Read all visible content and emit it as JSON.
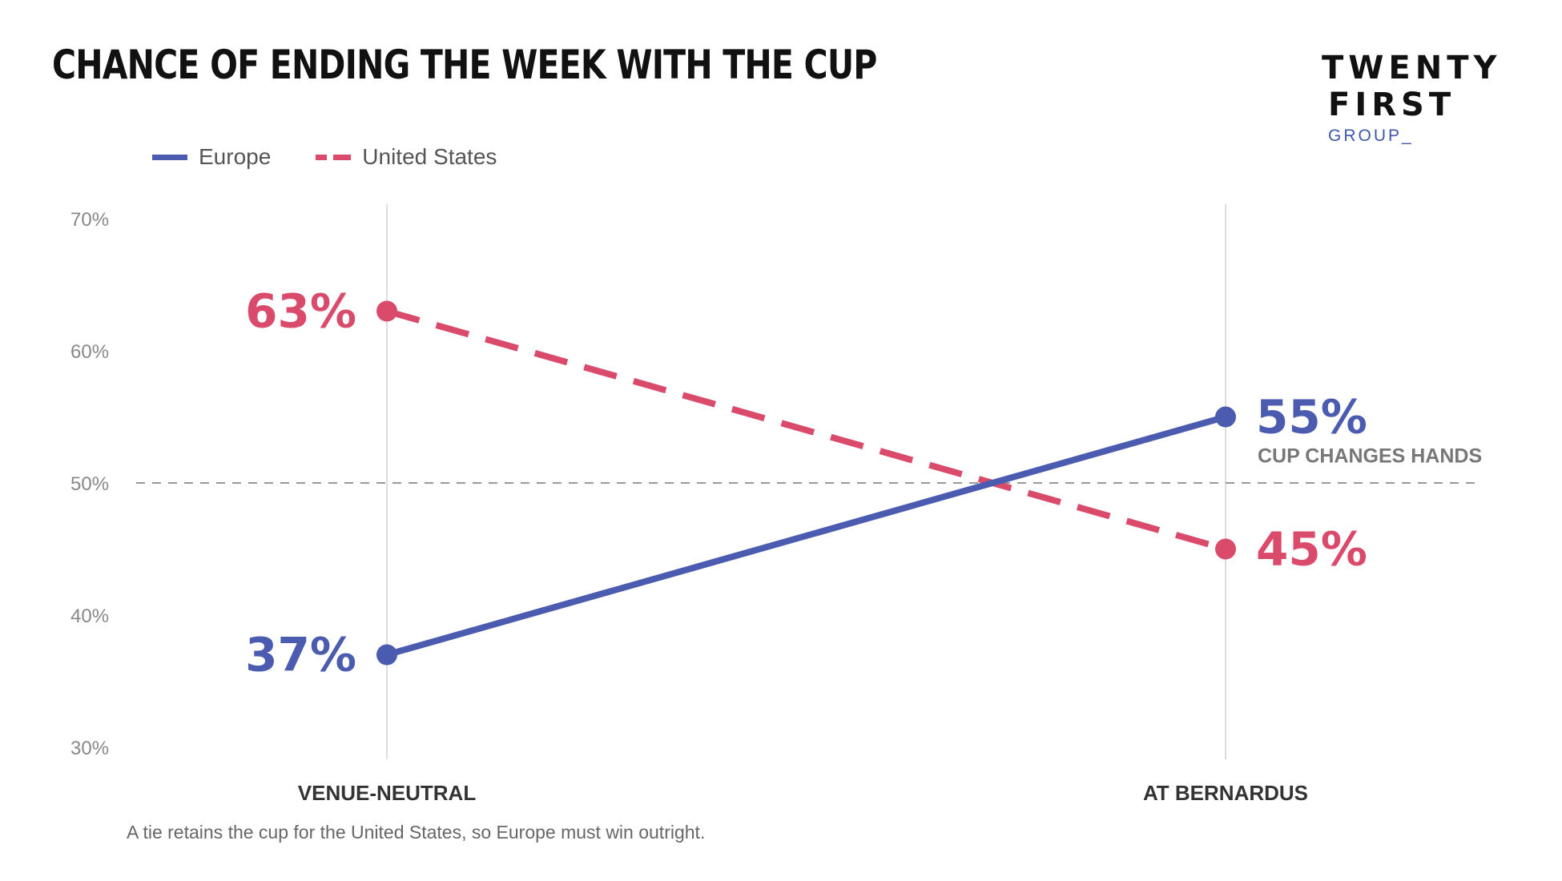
{
  "header": {
    "title": "CHANCE OF ENDING THE WEEK WITH THE CUP"
  },
  "logo": {
    "line1": "TWENTY",
    "line2": "FIRST",
    "line3": "GROUP_"
  },
  "footnote": "A tie retains the cup for the United States, so Europe must win outright.",
  "colors": {
    "europe": "#4A5BB0",
    "united_states": "#D94A6B",
    "title": "#111111",
    "brand_blue": "#3F57A8"
  },
  "chart_data": {
    "type": "line",
    "categories": [
      "VENUE-NEUTRAL",
      "AT BERNARDUS"
    ],
    "series": [
      {
        "name": "Europe",
        "values": [
          37,
          55
        ],
        "labels": [
          "37%",
          "55%"
        ],
        "color": "#4A5BB0",
        "style": "solid"
      },
      {
        "name": "United States",
        "values": [
          63,
          45
        ],
        "labels": [
          "63%",
          "45%"
        ],
        "color": "#D94A6B",
        "style": "dashed"
      }
    ],
    "ylim": [
      30,
      70
    ],
    "yticks": [
      70,
      60,
      50,
      40,
      30
    ],
    "ytick_labels": [
      "70%",
      "60%",
      "50%",
      "40%",
      "30%"
    ],
    "reference_line": 50,
    "annotation": "CUP CHANGES HANDS",
    "legend": "top-left",
    "grid": "vertical lines at categories"
  }
}
